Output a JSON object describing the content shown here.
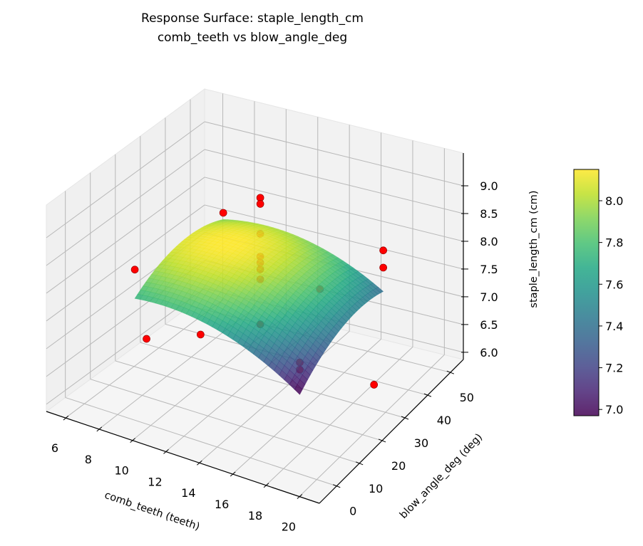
{
  "chart_data": {
    "type": "surface3d",
    "title": "Response Surface: staple_length_cm",
    "subtitle": "comb_teeth vs blow_angle_deg",
    "xlabel": "comb_teeth (teeth)",
    "ylabel": "blow_angle_deg (deg)",
    "zlabel": "staple_length_cm (cm)",
    "xlim": [
      4.85,
      21.2
    ],
    "ylim": [
      -7.6,
      55.7
    ],
    "zlim": [
      5.87,
      9.59
    ],
    "xticks": [
      6,
      8,
      10,
      12,
      14,
      16,
      18,
      20
    ],
    "yticks": [
      0,
      10,
      20,
      30,
      40,
      50
    ],
    "zticks": [
      "6.0",
      "6.5",
      "7.0",
      "7.5",
      "8.0",
      "8.5",
      "9.0"
    ],
    "grid": true,
    "colormap": "viridis",
    "surface": {
      "x": [
        8,
        10.5,
        13,
        15.5,
        18
      ],
      "y": [
        7,
        16,
        25,
        34,
        43
      ],
      "z": [
        [
          7.72,
          7.748,
          7.625,
          7.353,
          6.93
        ],
        [
          7.968,
          8.011,
          7.905,
          7.649,
          7.243
        ],
        [
          8.08,
          8.14,
          8.05,
          7.81,
          7.42
        ],
        [
          8.058,
          8.134,
          8.06,
          7.836,
          7.463
        ],
        [
          7.9,
          7.993,
          7.935,
          7.728,
          7.37
        ]
      ]
    },
    "points": [
      {
        "x": 6,
        "y": 25,
        "z": 6.2
      },
      {
        "x": 20,
        "y": 25,
        "z": 6.57
      },
      {
        "x": 13,
        "y": 50,
        "z": 6.77
      },
      {
        "x": 8,
        "y": 43,
        "z": 8.02
      },
      {
        "x": 8,
        "y": 7,
        "z": 8.24
      },
      {
        "x": 13,
        "y": 0,
        "z": 7.8
      },
      {
        "x": 18,
        "y": 43,
        "z": 8.11
      },
      {
        "x": 18,
        "y": 43,
        "z": 7.8
      },
      {
        "x": 18,
        "y": 7,
        "z": 7.51
      },
      {
        "x": 18,
        "y": 7,
        "z": 7.38
      },
      {
        "x": 13,
        "y": 25,
        "z": 9.34
      },
      {
        "x": 13,
        "y": 25,
        "z": 9.23
      },
      {
        "x": 13,
        "y": 25,
        "z": 8.69
      },
      {
        "x": 13,
        "y": 25,
        "z": 8.28
      },
      {
        "x": 13,
        "y": 25,
        "z": 8.17
      },
      {
        "x": 13,
        "y": 25,
        "z": 8.05
      },
      {
        "x": 13,
        "y": 25,
        "z": 7.87
      },
      {
        "x": 13,
        "y": 25,
        "z": 7.06
      }
    ],
    "point_color": "#ff0000",
    "colorbar": {
      "clim": [
        6.97,
        8.15
      ],
      "ticks": [
        "7.0",
        "7.2",
        "7.4",
        "7.6",
        "7.8",
        "8.0"
      ]
    }
  }
}
